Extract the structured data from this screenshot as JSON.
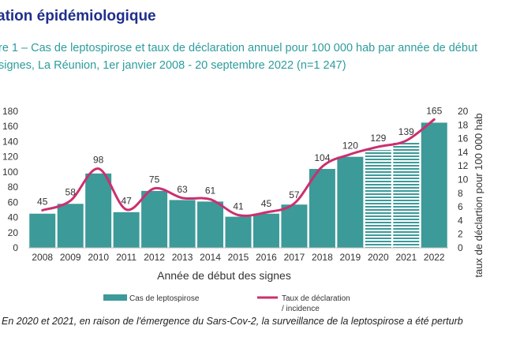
{
  "header": {
    "section_title": "ation épidémiologique",
    "caption_line1": "re 1 – Cas de leptospirose et taux de déclaration annuel pour 100 000 hab par année de début",
    "caption_line2": "signes, La Réunion, 1er janvier 2008 - 20 septembre 2022 (n=1 247)"
  },
  "footnote": "En 2020 et 2021, en raison de l'émergence du Sars-Cov-2, la surveillance de la leptospirose a été perturb",
  "colors": {
    "bar": "#3c9a99",
    "line": "#cc2f6f",
    "title": "#1f2f8c",
    "caption": "#2e9c9c",
    "text": "#333333",
    "axis": "#bbbbbb"
  },
  "chart_data": {
    "type": "bar",
    "categories": [
      "2008",
      "2009",
      "2010",
      "2011",
      "2012",
      "2013",
      "2014",
      "2015",
      "2016",
      "2017",
      "2018",
      "2019",
      "2020",
      "2021",
      "2022"
    ],
    "series": [
      {
        "name": "Cas de leptospirose",
        "type": "bar",
        "axis": "left",
        "values": [
          45,
          58,
          98,
          47,
          75,
          63,
          61,
          41,
          45,
          57,
          104,
          120,
          129,
          139,
          165
        ],
        "hatched": [
          "2020",
          "2021"
        ]
      },
      {
        "name": "Taux de déclaration / incidence",
        "type": "line",
        "axis": "right",
        "values": [
          5.5,
          6.9,
          11.6,
          5.6,
          8.7,
          7.3,
          7.1,
          4.8,
          5.2,
          6.5,
          11.9,
          13.7,
          14.8,
          15.7,
          18.8
        ]
      }
    ],
    "data_labels": [
      "45",
      "58",
      "98",
      "47",
      "75",
      "63",
      "61",
      "41",
      "45",
      "57",
      "104",
      "120",
      "129",
      "139",
      "165"
    ],
    "xlabel": "Année de début des signes",
    "ylabel_right": "taux de déclartion pour 100 000 hab",
    "ylim_left": [
      0,
      180
    ],
    "ylim_right": [
      0,
      20
    ],
    "yticks_left": [
      0,
      20,
      40,
      60,
      80,
      100,
      120,
      140,
      160,
      180
    ],
    "yticks_right": [
      0,
      2,
      4,
      6,
      8,
      10,
      12,
      14,
      16,
      18,
      20
    ],
    "legend": {
      "position": "bottom",
      "bar_label": "Cas de leptospirose",
      "line_label_1": "Taux de déclaration",
      "line_label_2": "/ incidence"
    }
  }
}
